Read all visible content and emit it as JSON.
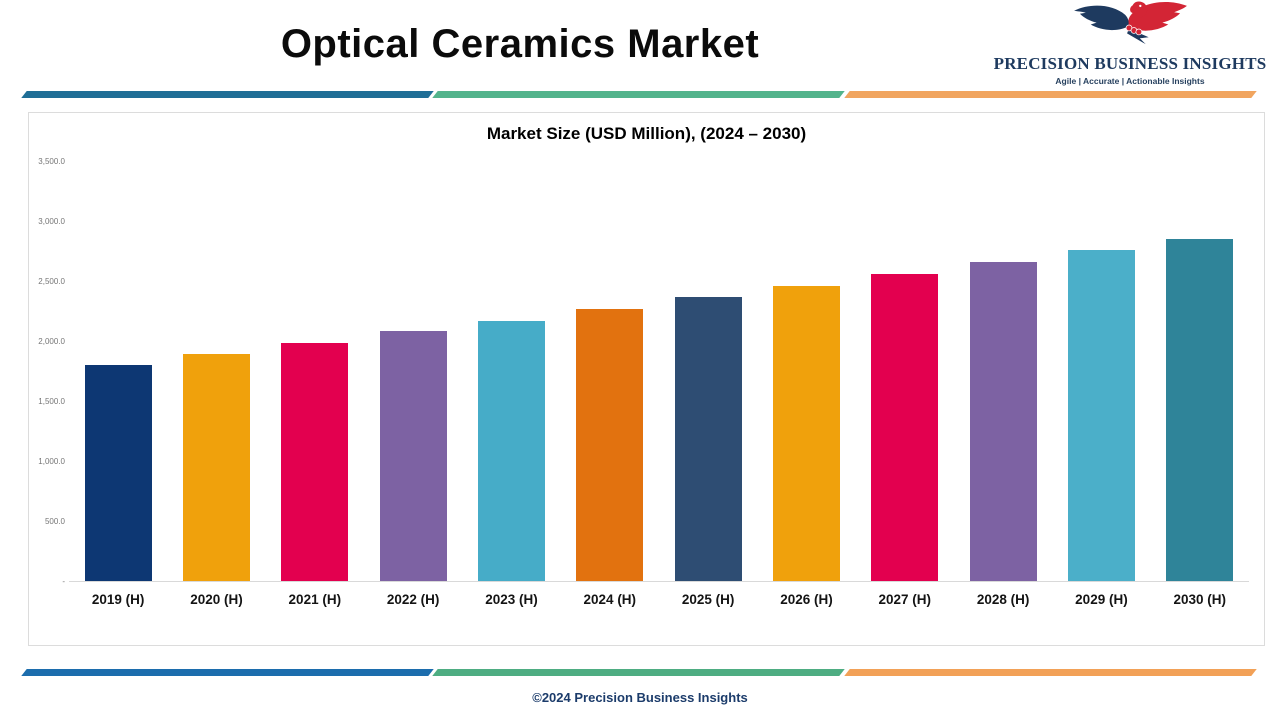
{
  "header": {
    "title": "Optical Ceramics Market",
    "logo": {
      "name": "PRECISION BUSINESS INSIGHTS",
      "tagline": "Agile | Accurate | Actionable Insights",
      "navy": "#1e3a5f",
      "red": "#d32535"
    }
  },
  "dividers": {
    "top_colors": [
      "#1f6e96",
      "#53b48c",
      "#f1a55f"
    ],
    "bottom_colors": [
      "#1c6dad",
      "#4ead82",
      "#f2a157"
    ]
  },
  "chart_data": {
    "type": "bar",
    "title": "Market Size (USD Million), (2024 – 2030)",
    "categories": [
      "2019 (H)",
      "2020 (H)",
      "2021 (H)",
      "2022 (H)",
      "2023 (H)",
      "2024 (H)",
      "2025 (H)",
      "2026 (H)",
      "2027 (H)",
      "2028 (H)",
      "2029 (H)",
      "2030 (H)"
    ],
    "values": [
      1800,
      1895,
      1985,
      2080,
      2170,
      2265,
      2365,
      2455,
      2560,
      2655,
      2755,
      2850
    ],
    "bar_colors": [
      "#0d3773",
      "#f0a10c",
      "#e3004f",
      "#7d62a3",
      "#46acc8",
      "#e2720f",
      "#2e4d73",
      "#f0a10c",
      "#e3004f",
      "#7d62a3",
      "#4bafc9",
      "#2f8499"
    ],
    "xlabel": "",
    "ylabel": "",
    "ylim": [
      0,
      3500
    ],
    "ytick_step": 500,
    "ytick_labels": [
      "-",
      "500.0",
      "1,000.0",
      "1,500.0",
      "2,000.0",
      "2,500.0",
      "3,000.0",
      "3,500.0"
    ],
    "grid": false,
    "legend": "none"
  },
  "footer": {
    "text": "©2024 Precision Business Insights"
  }
}
